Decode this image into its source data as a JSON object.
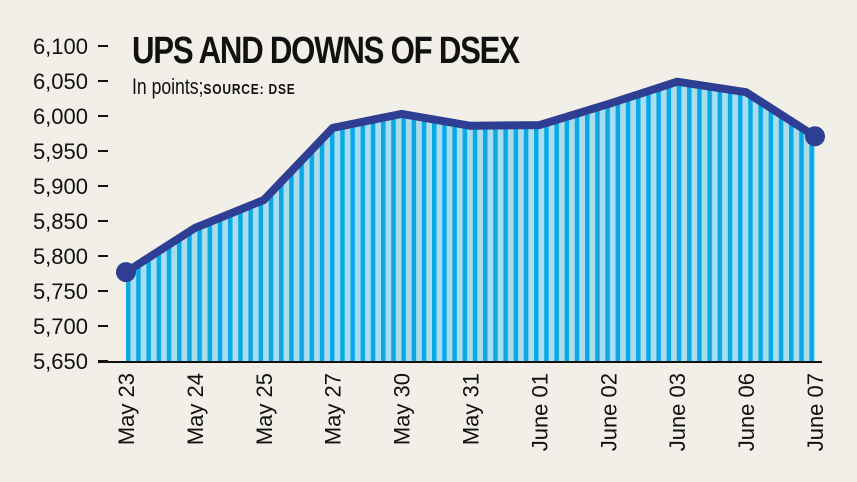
{
  "chart_data": {
    "type": "area",
    "title": "UPS AND DOWNS OF DSEX",
    "subtitle": "In points;",
    "source": "SOURCE: DSE",
    "xlabel": "",
    "ylabel": "",
    "categories": [
      "May 23",
      "May 24",
      "May 25",
      "May 27",
      "May 30",
      "May 31",
      "June 01",
      "June 02",
      "June 03",
      "June 06",
      "June 07"
    ],
    "values": [
      5777,
      5840,
      5880,
      5983,
      6003,
      5986,
      5987,
      6017,
      6049,
      6034,
      5971
    ],
    "ylim": [
      5650,
      6100
    ],
    "yticks": [
      5650,
      5700,
      5750,
      5800,
      5850,
      5900,
      5950,
      6000,
      6050,
      6100
    ],
    "ytick_labels": [
      "5,650",
      "5,700",
      "5,750",
      "5,800",
      "5,850",
      "5,900",
      "5,950",
      "6,000",
      "6,050",
      "6,100"
    ],
    "grid": false,
    "colors": {
      "line": "#2e3e92",
      "fill": "#a9dcec",
      "stripe": "#0aa9e6",
      "background": "#f2efe8"
    }
  }
}
